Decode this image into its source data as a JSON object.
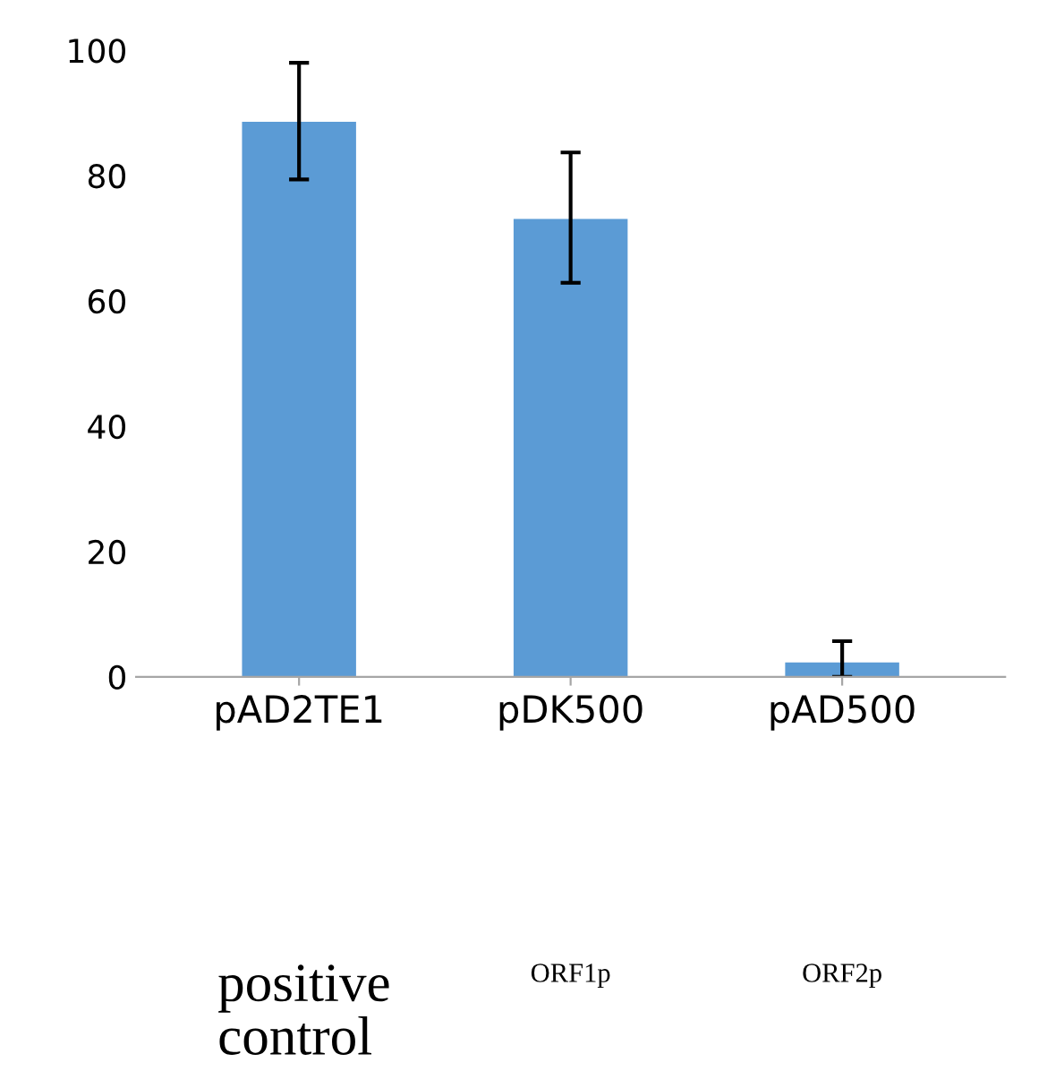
{
  "chart_data": {
    "type": "bar",
    "categories": [
      "pAD2TE1",
      "pDK500",
      "pAD500"
    ],
    "values": [
      88.6,
      73.1,
      2.3
    ],
    "errors": [
      [
        79.4,
        98.0
      ],
      [
        62.9,
        83.7
      ],
      [
        0.0,
        5.7
      ]
    ],
    "color": "#5b9bd5",
    "ylim": [
      0,
      100
    ],
    "yticks": [
      0,
      20,
      40,
      60,
      80,
      100
    ],
    "grid": false,
    "annotations": [
      "positive\ncontrol",
      "ORF1p",
      "ORF2p"
    ]
  }
}
